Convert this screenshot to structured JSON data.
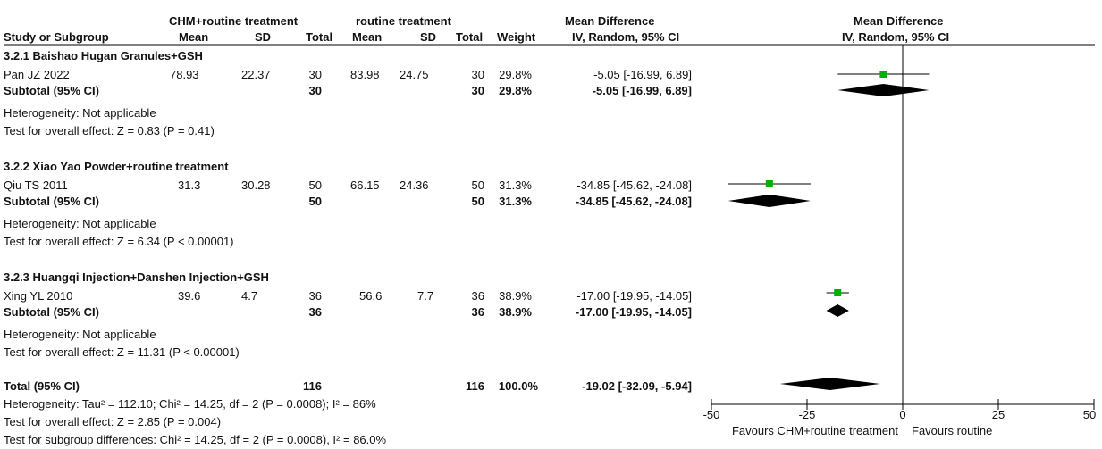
{
  "header": {
    "group1_title": "CHM+routine treatment",
    "group2_title": "routine treatment",
    "md_title_table": "Mean Difference",
    "md_title_plot": "Mean Difference",
    "col_study": "Study or Subgroup",
    "col_mean1": "Mean",
    "col_sd1": "SD",
    "col_total1": "Total",
    "col_mean2": "Mean",
    "col_sd2": "SD",
    "col_total2": "Total",
    "col_weight": "Weight",
    "col_ci_table": "IV, Random, 95% CI",
    "col_ci_plot": "IV, Random, 95% CI"
  },
  "subgroups": [
    {
      "title": "3.2.1 Baishao Hugan Granules+GSH",
      "studies": [
        {
          "name": "Pan JZ 2022",
          "mean1": "78.93",
          "sd1": "22.37",
          "total1": "30",
          "mean2": "83.98",
          "sd2": "24.75",
          "total2": "30",
          "weight": "29.8%",
          "ci_text": "-5.05 [-16.99, 6.89]",
          "md": -5.05,
          "lo": -16.99,
          "hi": 6.89
        }
      ],
      "subtotal": {
        "label": "Subtotal (95% CI)",
        "total1": "30",
        "total2": "30",
        "weight": "29.8%",
        "ci_text": "-5.05 [-16.99, 6.89]",
        "md": -5.05,
        "lo": -16.99,
        "hi": 6.89
      },
      "heterogeneity": "Heterogeneity: Not applicable",
      "overall": "Test for overall effect: Z = 0.83 (P = 0.41)"
    },
    {
      "title": "3.2.2 Xiao Yao Powder+routine treatment",
      "studies": [
        {
          "name": "Qiu TS 2011",
          "mean1": "31.3",
          "sd1": "30.28",
          "total1": "50",
          "mean2": "66.15",
          "sd2": "24.36",
          "total2": "50",
          "weight": "31.3%",
          "ci_text": "-34.85 [-45.62, -24.08]",
          "md": -34.85,
          "lo": -45.62,
          "hi": -24.08
        }
      ],
      "subtotal": {
        "label": "Subtotal (95% CI)",
        "total1": "50",
        "total2": "50",
        "weight": "31.3%",
        "ci_text": "-34.85 [-45.62, -24.08]",
        "md": -34.85,
        "lo": -45.62,
        "hi": -24.08
      },
      "heterogeneity": "Heterogeneity: Not applicable",
      "overall": "Test for overall effect: Z = 6.34 (P < 0.00001)"
    },
    {
      "title": "3.2.3 Huangqi Injection+Danshen Injection+GSH",
      "studies": [
        {
          "name": "Xing YL 2010",
          "mean1": "39.6",
          "sd1": "4.7",
          "total1": "36",
          "mean2": "56.6",
          "sd2": "7.7",
          "total2": "36",
          "weight": "38.9%",
          "ci_text": "-17.00 [-19.95, -14.05]",
          "md": -17.0,
          "lo": -19.95,
          "hi": -14.05
        }
      ],
      "subtotal": {
        "label": "Subtotal (95% CI)",
        "total1": "36",
        "total2": "36",
        "weight": "38.9%",
        "ci_text": "-17.00 [-19.95, -14.05]",
        "md": -17.0,
        "lo": -19.95,
        "hi": -14.05
      },
      "heterogeneity": "Heterogeneity: Not applicable",
      "overall": "Test for overall effect: Z = 11.31 (P < 0.00001)"
    }
  ],
  "total": {
    "label": "Total (95% CI)",
    "total1": "116",
    "total2": "116",
    "weight": "100.0%",
    "ci_text": "-19.02 [-32.09, -5.94]",
    "md": -19.02,
    "lo": -32.09,
    "hi": -5.94,
    "heterogeneity": "Heterogeneity: Tau² = 112.10; Chi² = 14.25, df = 2 (P = 0.0008); I² = 86%",
    "overall": "Test for overall effect: Z = 2.85 (P = 0.004)",
    "subgroup_diff": "Test for subgroup differences: Chi² = 14.25, df = 2 (P = 0.0008), I² = 86.0%"
  },
  "axis": {
    "ticks": [
      "-50",
      "-25",
      "0",
      "25",
      "50"
    ],
    "favours_left": "Favours CHM+routine treatment",
    "favours_right": "Favours routine"
  },
  "colors": {
    "study_marker": "#00b000",
    "diamond": "#000000",
    "line": "#000000",
    "text": "#111111"
  },
  "chart_data": {
    "type": "forest",
    "xlim": [
      -50,
      50
    ],
    "xticks": [
      -50,
      -25,
      0,
      25,
      50
    ],
    "studies": [
      {
        "name": "Pan JZ 2022",
        "md": -5.05,
        "ci": [
          -16.99,
          6.89
        ],
        "weight": 29.8
      },
      {
        "name": "Qiu TS 2011",
        "md": -34.85,
        "ci": [
          -45.62,
          -24.08
        ],
        "weight": 31.3
      },
      {
        "name": "Xing YL 2010",
        "md": -17.0,
        "ci": [
          -19.95,
          -14.05
        ],
        "weight": 38.9
      }
    ],
    "subtotals": [
      {
        "md": -5.05,
        "ci": [
          -16.99,
          6.89
        ]
      },
      {
        "md": -34.85,
        "ci": [
          -45.62,
          -24.08
        ]
      },
      {
        "md": -17.0,
        "ci": [
          -19.95,
          -14.05
        ]
      }
    ],
    "overall": {
      "md": -19.02,
      "ci": [
        -32.09,
        -5.94
      ]
    }
  }
}
